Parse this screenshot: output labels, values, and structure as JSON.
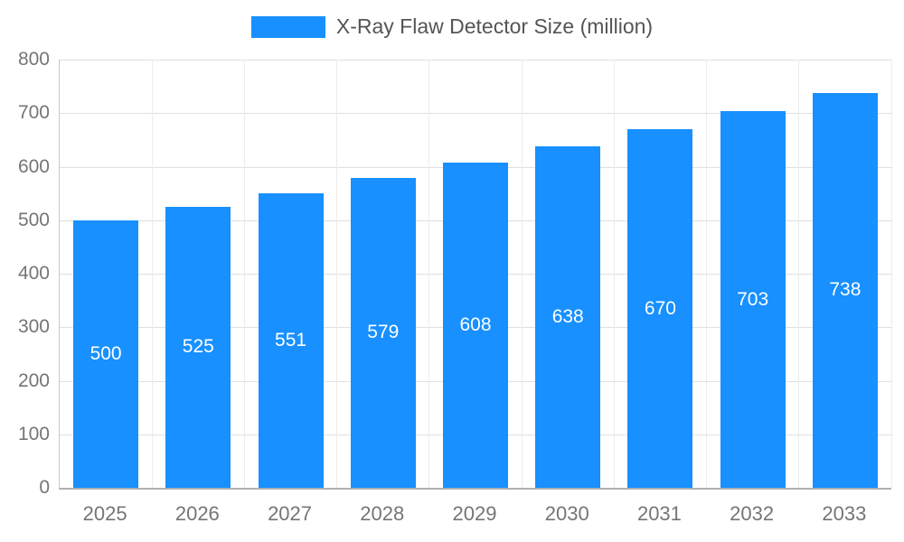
{
  "chart_data": {
    "type": "bar",
    "title": "X-Ray Flaw Detector Size (million)",
    "legend": {
      "position": "top",
      "label": "X-Ray Flaw Detector Size (million)"
    },
    "categories": [
      "2025",
      "2026",
      "2027",
      "2028",
      "2029",
      "2030",
      "2031",
      "2032",
      "2033"
    ],
    "values": [
      500,
      525,
      551,
      579,
      608,
      638,
      670,
      703,
      738
    ],
    "xlabel": "",
    "ylabel": "",
    "ylim": [
      0,
      800
    ],
    "ytick_step": 100,
    "grid": true,
    "colors": {
      "bar": "#1890ff",
      "value_label": "#ffffff",
      "axis_text": "#757575",
      "gridline": "#e0e0e0",
      "axis_line": "#b0b0b0",
      "title_text": "#555555"
    }
  }
}
